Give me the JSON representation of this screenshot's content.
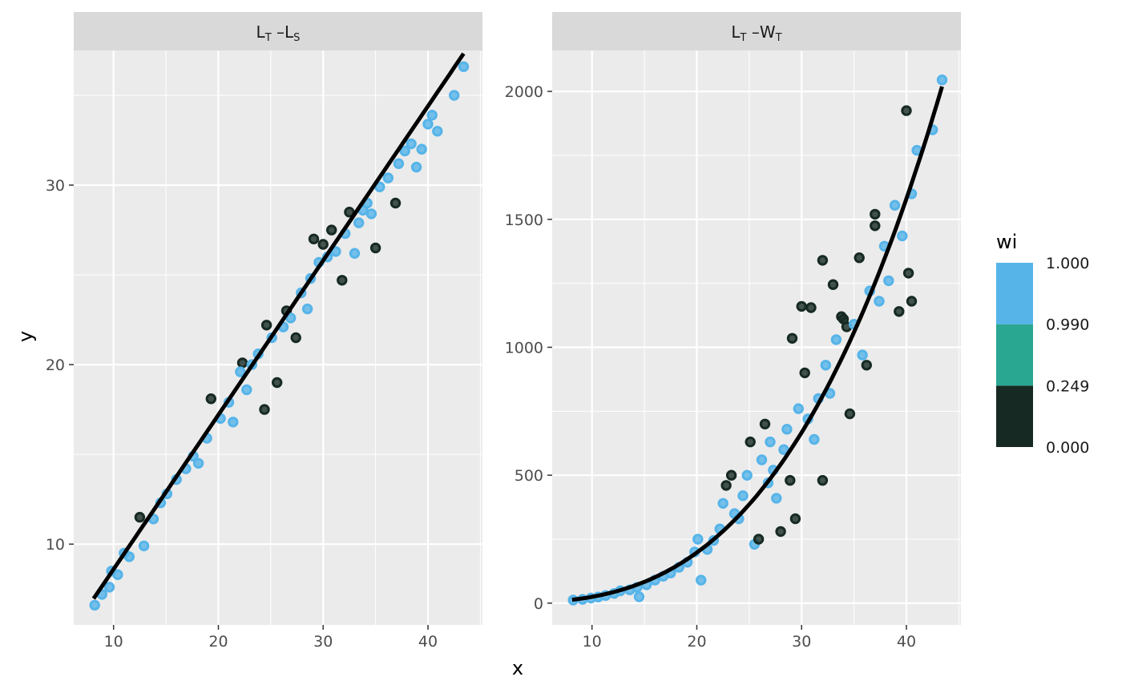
{
  "chart_data": {
    "type": "scatter",
    "xlabel": "x",
    "ylabel": "y",
    "x_ticks": [
      10,
      20,
      30,
      40
    ],
    "xlim": [
      6.2,
      45.2
    ],
    "legend": {
      "title": "wi",
      "placement": "right",
      "breaks": [
        "1.000",
        "0.990",
        "0.249",
        "0.000"
      ],
      "bins": [
        {
          "from": 0.99,
          "to": 1.0,
          "color": "#56B4E9"
        },
        {
          "from": 0.249,
          "to": 0.99,
          "color": "#2AA791"
        },
        {
          "from": 0.0,
          "to": 0.249,
          "color": "#162A23"
        }
      ]
    },
    "panels": [
      {
        "strip": {
          "main1": "L",
          "sub1": "T",
          "sep": " –",
          "main2": "L",
          "sub2": "S"
        },
        "ylim": [
          5.5,
          37.5
        ],
        "y_ticks": [
          10,
          20,
          30
        ],
        "fit_curve": {
          "a": 0.86,
          "b": 1.0,
          "x_range": [
            8.1,
            43.4
          ],
          "color": "#000000"
        },
        "points": [
          [
            8.2,
            6.6,
            1
          ],
          [
            8.9,
            7.2,
            1
          ],
          [
            9.6,
            7.6,
            1
          ],
          [
            9.8,
            8.5,
            0.99
          ],
          [
            10.4,
            8.3,
            1
          ],
          [
            11.0,
            9.5,
            0.99
          ],
          [
            11.5,
            9.3,
            0.99
          ],
          [
            12.5,
            11.5,
            0.1
          ],
          [
            12.9,
            9.9,
            0.99
          ],
          [
            13.8,
            11.4,
            1
          ],
          [
            14.5,
            12.3,
            1
          ],
          [
            15.1,
            12.8,
            0.99
          ],
          [
            16.0,
            13.6,
            1
          ],
          [
            16.9,
            14.2,
            1
          ],
          [
            17.6,
            14.9,
            1
          ],
          [
            18.1,
            14.5,
            0.99
          ],
          [
            18.9,
            15.9,
            1
          ],
          [
            19.3,
            18.1,
            0.1
          ],
          [
            20.2,
            17.0,
            1
          ],
          [
            21.0,
            17.9,
            0.99
          ],
          [
            21.4,
            16.8,
            0.99
          ],
          [
            22.3,
            20.1,
            0.1
          ],
          [
            22.1,
            19.6,
            0.99
          ],
          [
            22.7,
            18.6,
            0.99
          ],
          [
            23.2,
            20.0,
            0.99
          ],
          [
            23.8,
            20.6,
            0.99
          ],
          [
            24.4,
            17.5,
            0.1
          ],
          [
            24.6,
            22.2,
            0.1
          ],
          [
            25.1,
            21.5,
            0.99
          ],
          [
            25.6,
            19.0,
            0.1
          ],
          [
            26.2,
            22.1,
            1
          ],
          [
            26.5,
            23.0,
            0.1
          ],
          [
            26.9,
            22.6,
            0.99
          ],
          [
            27.4,
            21.5,
            0.1
          ],
          [
            27.9,
            24.0,
            0.99
          ],
          [
            28.5,
            23.1,
            0.99
          ],
          [
            28.8,
            24.8,
            1
          ],
          [
            29.1,
            27.0,
            0.1
          ],
          [
            29.6,
            25.7,
            0.99
          ],
          [
            30.0,
            26.7,
            0.1
          ],
          [
            30.4,
            26.0,
            0.99
          ],
          [
            30.8,
            27.5,
            0.1
          ],
          [
            31.2,
            26.3,
            0.99
          ],
          [
            31.8,
            24.7,
            0.1
          ],
          [
            32.1,
            27.3,
            0.99
          ],
          [
            32.5,
            28.5,
            0.1
          ],
          [
            33.0,
            26.2,
            0.99
          ],
          [
            33.4,
            27.9,
            0.99
          ],
          [
            33.8,
            28.6,
            0.99
          ],
          [
            34.2,
            29.0,
            0.99
          ],
          [
            34.6,
            28.4,
            0.99
          ],
          [
            35.0,
            26.5,
            0.1
          ],
          [
            35.4,
            29.9,
            0.99
          ],
          [
            36.2,
            30.4,
            1
          ],
          [
            36.9,
            29.0,
            0.1
          ],
          [
            37.2,
            31.2,
            0.99
          ],
          [
            37.8,
            31.9,
            0.99
          ],
          [
            38.4,
            32.3,
            0.99
          ],
          [
            38.9,
            31.0,
            0.99
          ],
          [
            39.4,
            32.0,
            0.99
          ],
          [
            40.0,
            33.4,
            0.99
          ],
          [
            40.4,
            33.9,
            0.99
          ],
          [
            40.9,
            33.0,
            0.99
          ],
          [
            42.5,
            35.0,
            1
          ],
          [
            43.4,
            36.6,
            0.99
          ]
        ]
      },
      {
        "strip": {
          "main1": "L",
          "sub1": "T",
          "sep": " –",
          "main2": "W",
          "sub2": "T"
        },
        "ylim": [
          -85,
          2160
        ],
        "y_ticks": [
          0,
          500,
          1000,
          1500,
          2000
        ],
        "fit_curve": {
          "a": 0.0247,
          "b": 3.0,
          "x_range": [
            8.1,
            43.4
          ],
          "color": "#000000"
        },
        "points": [
          [
            8.2,
            12,
            1
          ],
          [
            9.1,
            15,
            1
          ],
          [
            9.9,
            20,
            1
          ],
          [
            10.6,
            24,
            1
          ],
          [
            11.3,
            30,
            1
          ],
          [
            12.1,
            38,
            1
          ],
          [
            12.7,
            48,
            0.99
          ],
          [
            13.6,
            52,
            1
          ],
          [
            14.3,
            62,
            1
          ],
          [
            14.5,
            25,
            0.99
          ],
          [
            15.2,
            72,
            1
          ],
          [
            16.0,
            90,
            1
          ],
          [
            16.8,
            105,
            1
          ],
          [
            17.5,
            118,
            0.99
          ],
          [
            18.3,
            140,
            1
          ],
          [
            19.1,
            160,
            1
          ],
          [
            19.8,
            200,
            0.99
          ],
          [
            20.1,
            250,
            0.99
          ],
          [
            20.4,
            90,
            0.99
          ],
          [
            21.0,
            210,
            1
          ],
          [
            21.6,
            245,
            0.99
          ],
          [
            22.2,
            290,
            0.99
          ],
          [
            22.5,
            390,
            0.99
          ],
          [
            22.8,
            460,
            0.1
          ],
          [
            23.3,
            500,
            0.1
          ],
          [
            23.6,
            350,
            0.99
          ],
          [
            24.0,
            330,
            0.99
          ],
          [
            24.4,
            420,
            0.99
          ],
          [
            24.8,
            500,
            0.99
          ],
          [
            25.1,
            630,
            0.1
          ],
          [
            25.5,
            230,
            0.99
          ],
          [
            25.9,
            250,
            0.1
          ],
          [
            26.2,
            560,
            0.99
          ],
          [
            26.5,
            700,
            0.1
          ],
          [
            26.8,
            470,
            0.99
          ],
          [
            27.0,
            630,
            0.99
          ],
          [
            27.3,
            520,
            0.99
          ],
          [
            27.6,
            410,
            0.99
          ],
          [
            28.0,
            280,
            0.1
          ],
          [
            28.3,
            600,
            0.99
          ],
          [
            28.6,
            680,
            0.99
          ],
          [
            28.9,
            480,
            0.1
          ],
          [
            29.1,
            1035,
            0.1
          ],
          [
            29.4,
            330,
            0.1
          ],
          [
            29.7,
            760,
            0.99
          ],
          [
            30.0,
            1160,
            0.1
          ],
          [
            30.3,
            900,
            0.1
          ],
          [
            30.6,
            720,
            0.99
          ],
          [
            30.9,
            1155,
            0.1
          ],
          [
            31.2,
            640,
            0.99
          ],
          [
            31.6,
            800,
            0.99
          ],
          [
            32.0,
            1340,
            0.1
          ],
          [
            32.0,
            480,
            0.1
          ],
          [
            32.3,
            930,
            0.99
          ],
          [
            32.7,
            820,
            0.99
          ],
          [
            33.0,
            1245,
            0.1
          ],
          [
            33.3,
            1030,
            0.99
          ],
          [
            33.8,
            1120,
            0.1
          ],
          [
            34.0,
            1110,
            0.1
          ],
          [
            34.3,
            1080,
            0.1
          ],
          [
            34.6,
            740,
            0.1
          ],
          [
            35.0,
            1090,
            0.99
          ],
          [
            35.5,
            1350,
            0.1
          ],
          [
            35.8,
            970,
            0.99
          ],
          [
            36.2,
            930,
            0.1
          ],
          [
            36.5,
            1220,
            1
          ],
          [
            37.0,
            1520,
            0.1
          ],
          [
            37.0,
            1475,
            0.1
          ],
          [
            37.4,
            1180,
            0.99
          ],
          [
            37.9,
            1395,
            0.99
          ],
          [
            38.3,
            1260,
            0.99
          ],
          [
            38.9,
            1555,
            0.99
          ],
          [
            39.3,
            1140,
            0.1
          ],
          [
            39.6,
            1435,
            0.99
          ],
          [
            40.0,
            1925,
            0.1
          ],
          [
            40.2,
            1290,
            0.1
          ],
          [
            40.5,
            1180,
            0.1
          ],
          [
            40.5,
            1600,
            1
          ],
          [
            41.0,
            1770,
            1
          ],
          [
            42.5,
            1850,
            1
          ],
          [
            43.4,
            2045,
            0.99
          ]
        ]
      }
    ]
  }
}
